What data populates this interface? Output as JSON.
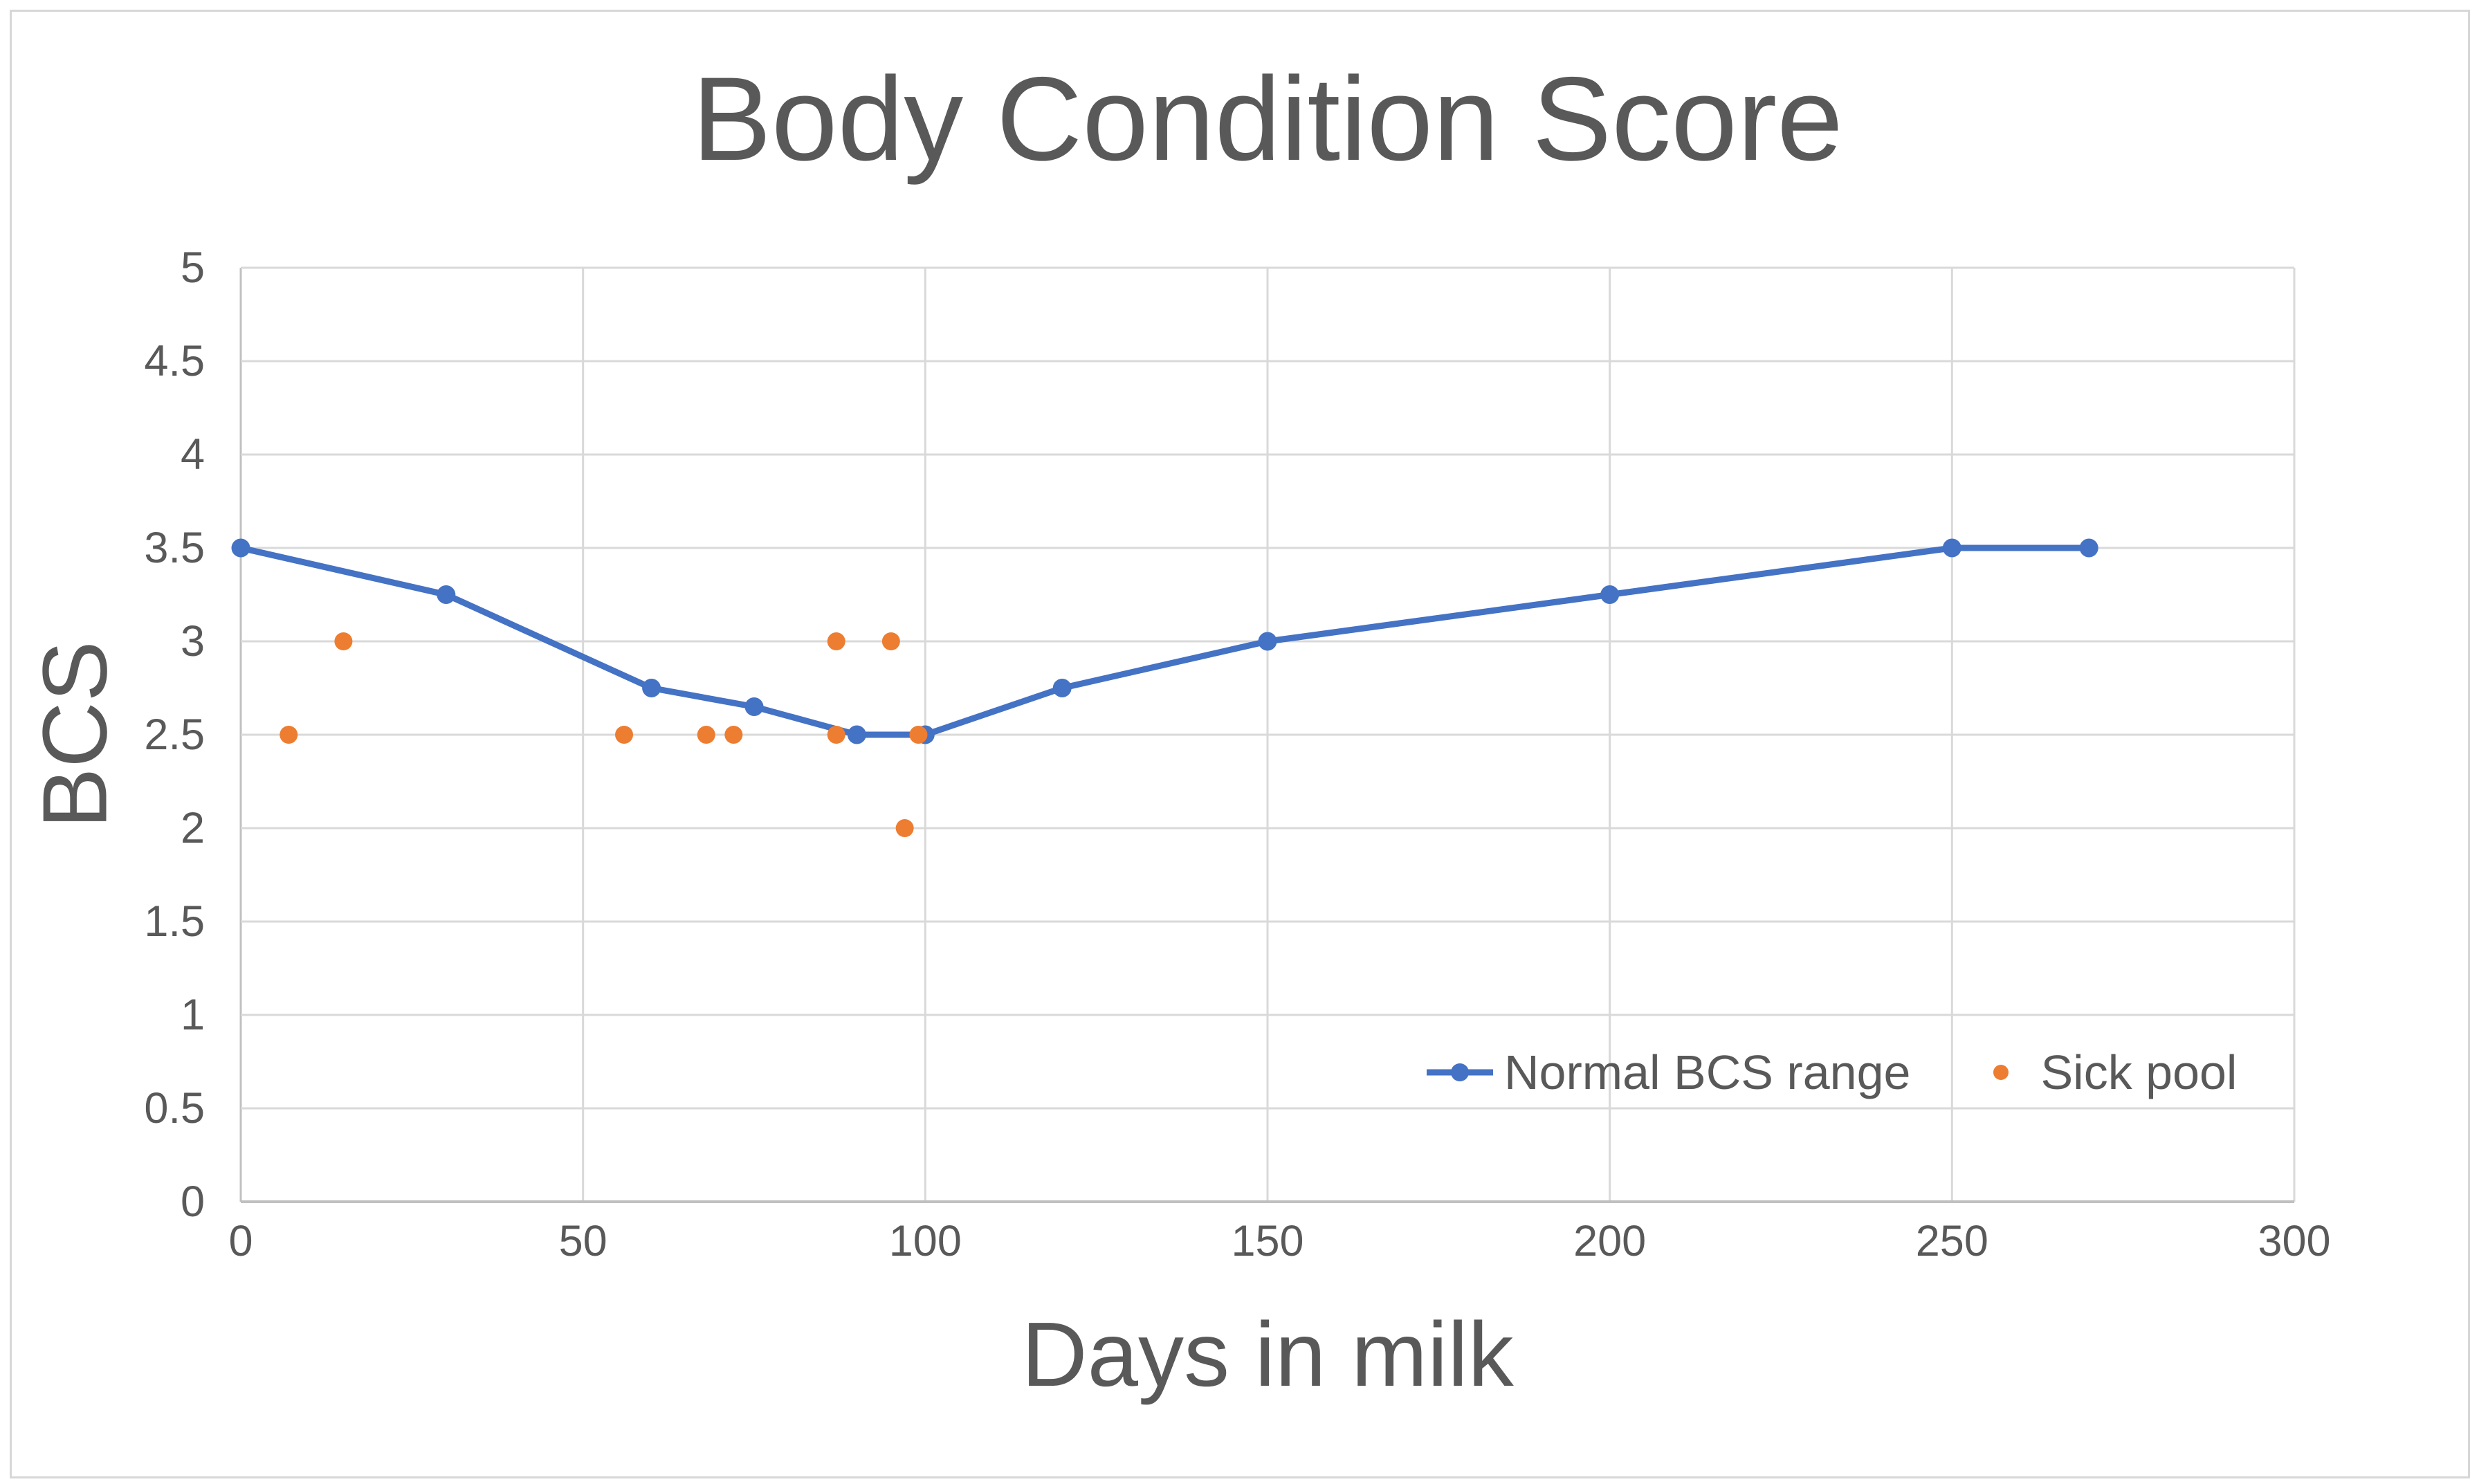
{
  "chart_data": {
    "type": "line",
    "title": "Body Condition Score",
    "xlabel": "Days in milk",
    "ylabel": "BCS",
    "xlim": [
      0,
      300
    ],
    "ylim": [
      0,
      5
    ],
    "x_ticks": [
      0,
      50,
      100,
      150,
      200,
      250,
      300
    ],
    "y_ticks": [
      0,
      0.5,
      1,
      1.5,
      2,
      2.5,
      3,
      3.5,
      4,
      4.5,
      5
    ],
    "grid": true,
    "legend_position": "inside-bottom-right",
    "series": [
      {
        "name": "Normal BCS range",
        "mode": "line-with-markers",
        "color": "#4472C4",
        "points": [
          [
            0,
            3.5
          ],
          [
            30,
            3.25
          ],
          [
            60,
            2.75
          ],
          [
            75,
            2.65
          ],
          [
            90,
            2.5
          ],
          [
            100,
            2.5
          ],
          [
            120,
            2.75
          ],
          [
            150,
            3.0
          ],
          [
            200,
            3.25
          ],
          [
            250,
            3.5
          ],
          [
            270,
            3.5
          ]
        ]
      },
      {
        "name": "Sick pool",
        "mode": "scatter",
        "color": "#ED7D31",
        "points": [
          [
            7,
            2.5
          ],
          [
            15,
            3.0
          ],
          [
            56,
            2.5
          ],
          [
            68,
            2.5
          ],
          [
            72,
            2.5
          ],
          [
            87,
            2.5
          ],
          [
            87,
            3.0
          ],
          [
            95,
            3.0
          ],
          [
            97,
            2.0
          ],
          [
            99,
            2.5
          ]
        ]
      }
    ]
  },
  "colors": {
    "text": "#595959",
    "gridline": "#D9D9D9",
    "axis_line": "#C0C0C0",
    "series_normal": "#4472C4",
    "series_sick": "#ED7D31",
    "frame_border": "#D7D7D7",
    "background": "#FFFFFF"
  }
}
